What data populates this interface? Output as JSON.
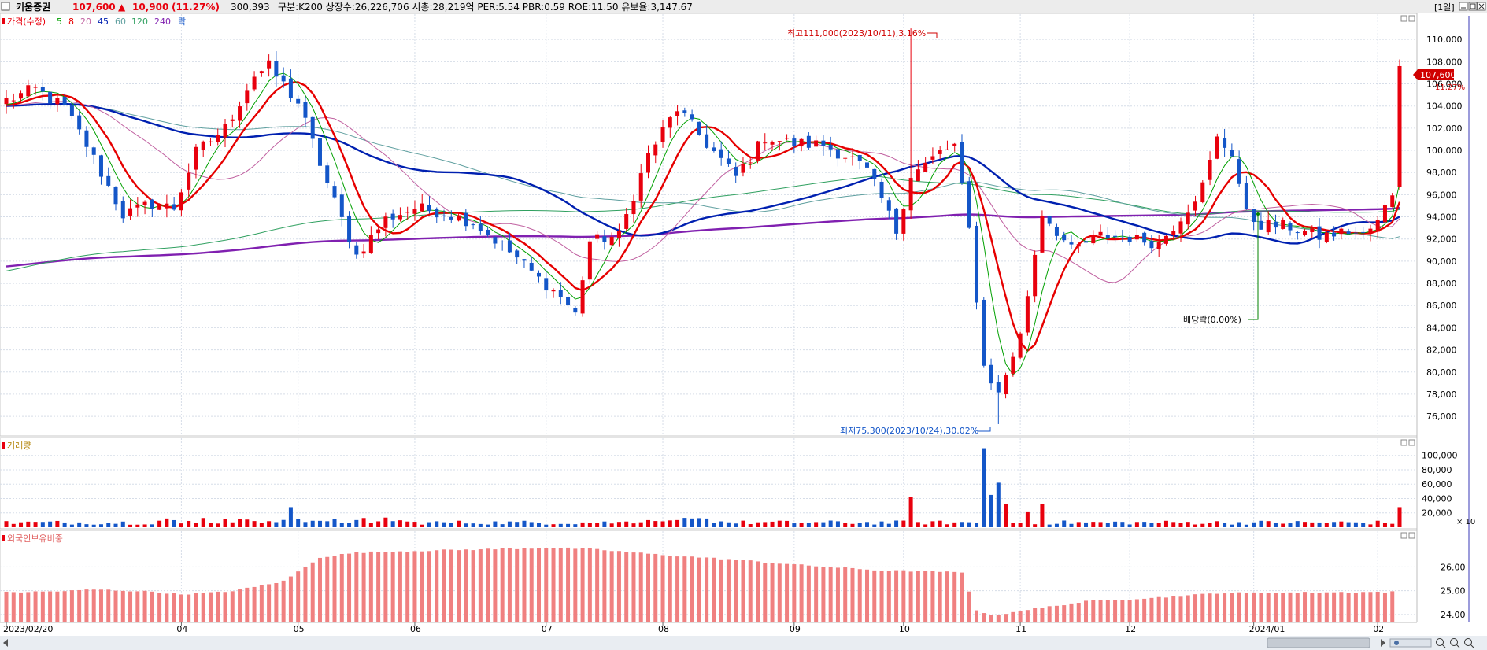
{
  "header": {
    "stock_name": "키움증권",
    "price": "107,600",
    "change_arrow": "▲",
    "change": "10,900",
    "change_pct": "(11.27%)",
    "volume": "300,393",
    "info": "구분:K200 상장수:26,226,706 시총:28,219억 PER:5.54 PBR:0.59 ROE:11.50 유보율:3,147.67",
    "period": "[1일]"
  },
  "colors": {
    "up": "#e8000d",
    "down": "#1456c8",
    "ma5": "#00a000",
    "ma8": "#e60000",
    "ma20": "#c060a0",
    "ma45": "#0020b0",
    "ma60": "#60a0a0",
    "ma120": "#30a060",
    "ma240": "#8020b0",
    "foreign": "#f08080"
  },
  "legend": {
    "price_label": "가격(수정)",
    "ma_labels": [
      "5",
      "8",
      "20",
      "45",
      "60",
      "120",
      "240"
    ],
    "extra_label": "락",
    "volume_label": "거래량",
    "foreign_label": "외국인보유비중"
  },
  "annotations": {
    "high": "최고111,000(2023/10/11),3.16%",
    "low": "최저75,300(2023/10/24),30.02%",
    "dividend": "배당락(0.00%)"
  },
  "chart_data": [
    {
      "type": "candlestick",
      "title": "가격(수정)",
      "ylim": [
        74800,
        112000
      ],
      "y_ticks": [
        "110,000",
        "108,000",
        "106,000",
        "104,000",
        "102,000",
        "100,000",
        "98,000",
        "96,000",
        "94,000",
        "92,000",
        "90,000",
        "88,000",
        "86,000",
        "84,000",
        "82,000",
        "80,000",
        "78,000",
        "76,000"
      ],
      "current_price_label": "107,600",
      "current_pct_label": "11.27%",
      "x_labels": [
        "2023/02/20",
        "04",
        "05",
        "06",
        "07",
        "08",
        "09",
        "10",
        "11",
        "12",
        "2024/01",
        "02"
      ],
      "anchors": [
        [
          0,
          104500
        ],
        [
          4,
          105500
        ],
        [
          8,
          103800
        ],
        [
          11,
          100500
        ],
        [
          16,
          94200
        ],
        [
          20,
          95200
        ],
        [
          23,
          94800
        ],
        [
          26,
          99800
        ],
        [
          30,
          102000
        ],
        [
          34,
          106800
        ],
        [
          36,
          107500
        ],
        [
          40,
          104300
        ],
        [
          44,
          97000
        ],
        [
          48,
          90500
        ],
        [
          52,
          93800
        ],
        [
          56,
          94800
        ],
        [
          60,
          94400
        ],
        [
          64,
          93500
        ],
        [
          70,
          90300
        ],
        [
          73,
          88400
        ],
        [
          76,
          86800
        ],
        [
          78,
          85200
        ],
        [
          80,
          91800
        ],
        [
          84,
          92300
        ],
        [
          88,
          99600
        ],
        [
          92,
          103800
        ],
        [
          96,
          100600
        ],
        [
          100,
          97600
        ],
        [
          104,
          101200
        ],
        [
          108,
          100600
        ],
        [
          112,
          100500
        ],
        [
          116,
          99200
        ],
        [
          118,
          98100
        ],
        [
          120,
          95600
        ],
        [
          122,
          92700
        ],
        [
          124,
          97800
        ],
        [
          126,
          98700
        ],
        [
          128,
          99800
        ],
        [
          130,
          100400
        ],
        [
          132,
          92800
        ],
        [
          134,
          80500
        ],
        [
          136,
          78000
        ],
        [
          139,
          83300
        ],
        [
          142,
          94400
        ],
        [
          146,
          91000
        ],
        [
          150,
          92300
        ],
        [
          154,
          92100
        ],
        [
          158,
          91600
        ],
        [
          162,
          94800
        ],
        [
          164,
          96800
        ],
        [
          166,
          101000
        ],
        [
          168,
          99800
        ],
        [
          170,
          94200
        ],
        [
          172,
          93300
        ],
        [
          176,
          93100
        ],
        [
          180,
          92200
        ],
        [
          184,
          92700
        ],
        [
          186,
          92300
        ],
        [
          188,
          93500
        ],
        [
          190,
          96200
        ],
        [
          191,
          107600
        ]
      ],
      "ma_periods": [
        5,
        8,
        20,
        45,
        60,
        120,
        240
      ],
      "ma_bold": [
        8,
        45,
        240
      ],
      "high_marker": {
        "index": 124,
        "value": 111000
      },
      "low_marker": {
        "index": 136,
        "value": 75300
      },
      "dividend_marker": {
        "index": 172
      }
    },
    {
      "type": "bar",
      "title": "거래량",
      "ylim": [
        0,
        115000
      ],
      "y_ticks": [
        "100,000",
        "80,000",
        "60,000",
        "40,000",
        "20,000"
      ],
      "unit_label": "× 10",
      "spikes": {
        "39": 28000,
        "124": 42000,
        "134": 110000,
        "135": 45000,
        "136": 62000,
        "137": 32000,
        "140": 22000,
        "142": 32000,
        "191": 28000
      }
    },
    {
      "type": "bar",
      "title": "외국인보유비중",
      "ylim": [
        23.7,
        27.2
      ],
      "y_ticks": [
        "26.00",
        "25.00",
        "24.00"
      ],
      "anchors": [
        [
          0,
          24.93
        ],
        [
          8,
          24.98
        ],
        [
          12,
          25.05
        ],
        [
          20,
          24.96
        ],
        [
          24,
          24.85
        ],
        [
          30,
          24.95
        ],
        [
          34,
          25.15
        ],
        [
          38,
          25.4
        ],
        [
          40,
          25.8
        ],
        [
          43,
          26.4
        ],
        [
          48,
          26.6
        ],
        [
          60,
          26.7
        ],
        [
          75,
          26.8
        ],
        [
          80,
          26.75
        ],
        [
          90,
          26.5
        ],
        [
          100,
          26.3
        ],
        [
          110,
          26.05
        ],
        [
          120,
          25.85
        ],
        [
          128,
          25.8
        ],
        [
          131,
          25.75
        ],
        [
          133,
          24.2
        ],
        [
          135,
          23.95
        ],
        [
          140,
          24.2
        ],
        [
          148,
          24.55
        ],
        [
          160,
          24.75
        ],
        [
          166,
          24.9
        ],
        [
          190,
          24.95
        ]
      ]
    }
  ]
}
